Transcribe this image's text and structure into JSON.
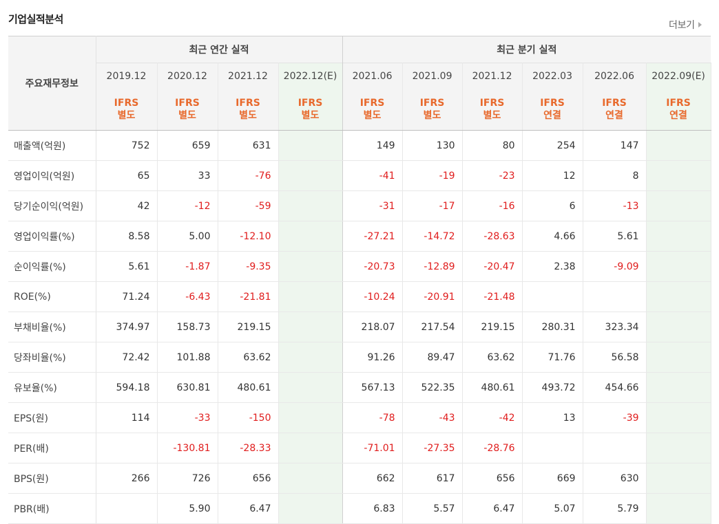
{
  "section": {
    "title": "기업실적분석",
    "more_label": "더보기"
  },
  "header": {
    "corner_label": "주요재무정보",
    "annual_group": "최근 연간 실적",
    "quarter_group": "최근 분기 실적",
    "columns": [
      {
        "period": "2019.12",
        "std1": "IFRS",
        "std2": "별도"
      },
      {
        "period": "2020.12",
        "std1": "IFRS",
        "std2": "별도"
      },
      {
        "period": "2021.12",
        "std1": "IFRS",
        "std2": "별도"
      },
      {
        "period": "2022.12(E)",
        "std1": "IFRS",
        "std2": "별도"
      },
      {
        "period": "2021.06",
        "std1": "IFRS",
        "std2": "별도"
      },
      {
        "period": "2021.09",
        "std1": "IFRS",
        "std2": "별도"
      },
      {
        "period": "2021.12",
        "std1": "IFRS",
        "std2": "별도"
      },
      {
        "period": "2022.03",
        "std1": "IFRS",
        "std2": "연결"
      },
      {
        "period": "2022.06",
        "std1": "IFRS",
        "std2": "연결"
      },
      {
        "period": "2022.09(E)",
        "std1": "IFRS",
        "std2": "연결"
      }
    ]
  },
  "rows": [
    {
      "label": "매출액(억원)",
      "values": [
        "752",
        "659",
        "631",
        "",
        "149",
        "130",
        "80",
        "254",
        "147",
        ""
      ]
    },
    {
      "label": "영업이익(억원)",
      "values": [
        "65",
        "33",
        "-76",
        "",
        "-41",
        "-19",
        "-23",
        "12",
        "8",
        ""
      ]
    },
    {
      "label": "당기순이익(억원)",
      "values": [
        "42",
        "-12",
        "-59",
        "",
        "-31",
        "-17",
        "-16",
        "6",
        "-13",
        ""
      ]
    },
    {
      "label": "영업이익률(%)",
      "values": [
        "8.58",
        "5.00",
        "-12.10",
        "",
        "-27.21",
        "-14.72",
        "-28.63",
        "4.66",
        "5.61",
        ""
      ]
    },
    {
      "label": "순이익률(%)",
      "values": [
        "5.61",
        "-1.87",
        "-9.35",
        "",
        "-20.73",
        "-12.89",
        "-20.47",
        "2.38",
        "-9.09",
        ""
      ]
    },
    {
      "label": "ROE(%)",
      "values": [
        "71.24",
        "-6.43",
        "-21.81",
        "",
        "-10.24",
        "-20.91",
        "-21.48",
        "",
        "",
        ""
      ]
    },
    {
      "label": "부채비율(%)",
      "values": [
        "374.97",
        "158.73",
        "219.15",
        "",
        "218.07",
        "217.54",
        "219.15",
        "280.31",
        "323.34",
        ""
      ]
    },
    {
      "label": "당좌비율(%)",
      "values": [
        "72.42",
        "101.88",
        "63.62",
        "",
        "91.26",
        "89.47",
        "63.62",
        "71.76",
        "56.58",
        ""
      ]
    },
    {
      "label": "유보율(%)",
      "values": [
        "594.18",
        "630.81",
        "480.61",
        "",
        "567.13",
        "522.35",
        "480.61",
        "493.72",
        "454.66",
        ""
      ]
    },
    {
      "label": "EPS(원)",
      "values": [
        "114",
        "-33",
        "-150",
        "",
        "-78",
        "-43",
        "-42",
        "13",
        "-39",
        ""
      ]
    },
    {
      "label": "PER(배)",
      "values": [
        "",
        "-130.81",
        "-28.33",
        "",
        "-71.01",
        "-27.35",
        "-28.76",
        "",
        "",
        ""
      ]
    },
    {
      "label": "BPS(원)",
      "values": [
        "266",
        "726",
        "656",
        "",
        "662",
        "617",
        "656",
        "669",
        "630",
        ""
      ]
    },
    {
      "label": "PBR(배)",
      "values": [
        "",
        "5.90",
        "6.47",
        "",
        "6.83",
        "5.57",
        "6.47",
        "5.07",
        "5.79",
        ""
      ]
    }
  ],
  "colors": {
    "negative": "#e01c1c",
    "accounting_standard": "#e8692c",
    "estimate_background": "#eef6ee"
  }
}
